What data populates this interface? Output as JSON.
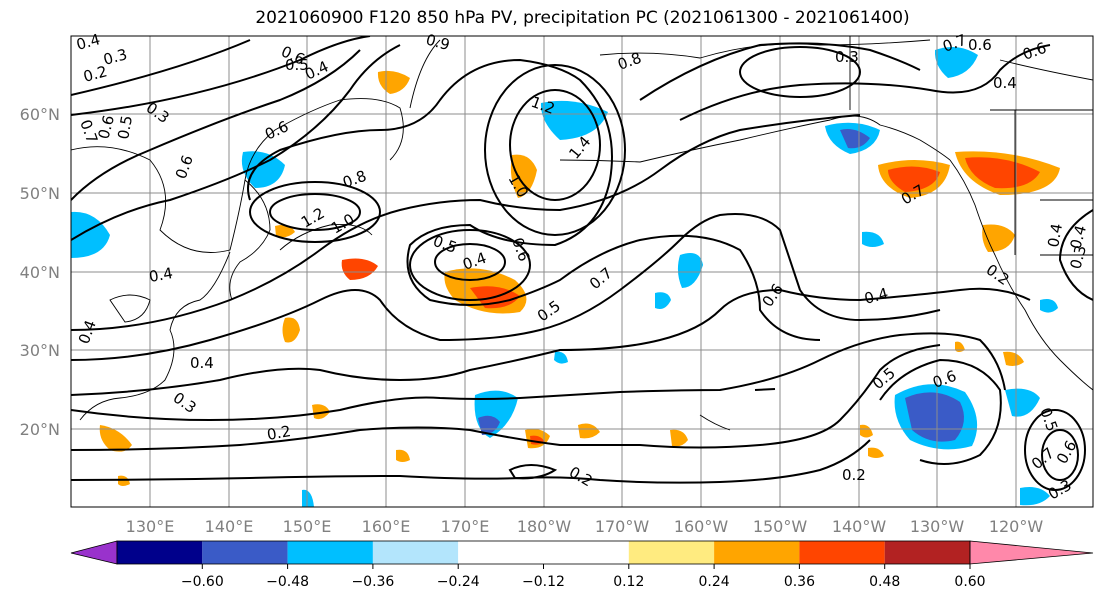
{
  "title": "2021060900 F120 850 hPa PV, precipitation PC (2021061300 - 2021061400)",
  "lat_labels": [
    "60°N",
    "50°N",
    "40°N",
    "30°N",
    "20°N"
  ],
  "lon_labels": [
    "130°E",
    "140°E",
    "150°E",
    "160°E",
    "170°E",
    "180°W",
    "170°W",
    "160°W",
    "150°W",
    "140°W",
    "130°W",
    "120°W"
  ],
  "colorbar": {
    "colors": [
      "#9932cc",
      "#00008b",
      "#3a5bc7",
      "#00bfff",
      "#b3e5fc",
      "#ffffff",
      "#ffffff",
      "#ffeb80",
      "#ffa500",
      "#ff4500",
      "#b22222",
      "#ff88aa"
    ],
    "tick_labels": [
      "−0.60",
      "−0.48",
      "−0.36",
      "−0.24",
      "−0.12",
      "0.12",
      "0.24",
      "0.36",
      "0.48",
      "0.60"
    ]
  },
  "contour_labels": [
    "0.4",
    "0.3",
    "0.2",
    "0.3",
    "0.7",
    "0.6",
    "0.5",
    "0.6",
    "0.5",
    "0.4",
    "0.6",
    "0.8",
    "0.9",
    "1.2",
    "1.0",
    "1.2",
    "1.4",
    "1.0",
    "0.8",
    "0.5",
    "0.4",
    "0.6",
    "0.5",
    "0.4",
    "0.3",
    "0.2",
    "0.4",
    "0.6",
    "0.4",
    "0.5",
    "0.6",
    "0.7",
    "0.2",
    "0.2",
    "0.5",
    "0.6",
    "0.7",
    "0.6",
    "0.3",
    "0.3",
    "0.7",
    "0.6",
    "0.4",
    "0.4",
    "0.2",
    "0.7",
    "0.6",
    "0.4",
    "0.3",
    "0.4"
  ]
}
